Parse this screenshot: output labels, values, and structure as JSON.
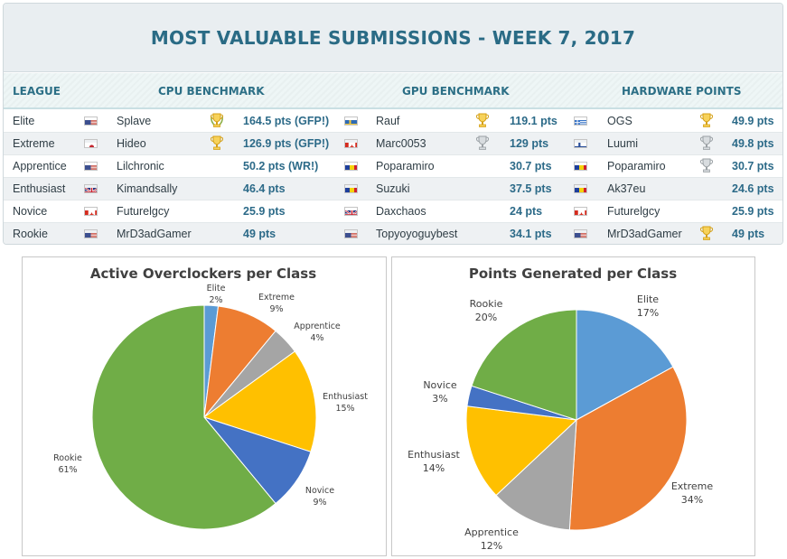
{
  "title": "MOST VALUABLE SUBMISSIONS - WEEK 7, 2017",
  "headers": {
    "league": "LEAGUE",
    "cpu": "CPU BENCHMARK",
    "gpu": "GPU BENCHMARK",
    "hw": "HARDWARE POINTS"
  },
  "rows": [
    {
      "league": "Elite",
      "cpu": {
        "flag": "us",
        "name": "Splave",
        "trophy": "gold-laurel",
        "pts": "164.5 pts (GFP!)"
      },
      "gpu": {
        "flag": "se",
        "name": "Rauf",
        "trophy": "gold",
        "pts": "119.1 pts"
      },
      "hw": {
        "flag": "gr",
        "name": "OGS",
        "trophy": "gold",
        "pts": "49.9 pts"
      }
    },
    {
      "league": "Extreme",
      "cpu": {
        "flag": "jp",
        "name": "Hideo",
        "trophy": "gold",
        "pts": "126.9 pts (GFP!)"
      },
      "gpu": {
        "flag": "ca",
        "name": "Marc0053",
        "trophy": "silver",
        "pts": "129 pts"
      },
      "hw": {
        "flag": "fi",
        "name": "Luumi",
        "trophy": "silver",
        "pts": "49.8 pts"
      }
    },
    {
      "league": "Apprentice",
      "cpu": {
        "flag": "us",
        "name": "Lilchronic",
        "trophy": "",
        "pts": "50.2 pts (WR!)"
      },
      "gpu": {
        "flag": "ro",
        "name": "Poparamiro",
        "trophy": "",
        "pts": "30.7 pts"
      },
      "hw": {
        "flag": "ro",
        "name": "Poparamiro",
        "trophy": "silver",
        "pts": "30.7 pts"
      }
    },
    {
      "league": "Enthusiast",
      "cpu": {
        "flag": "uk",
        "name": "Kimandsally",
        "trophy": "",
        "pts": "46.4 pts"
      },
      "gpu": {
        "flag": "ro",
        "name": "Suzuki",
        "trophy": "",
        "pts": "37.5 pts"
      },
      "hw": {
        "flag": "ro",
        "name": "Ak37eu",
        "trophy": "",
        "pts": "24.6 pts"
      }
    },
    {
      "league": "Novice",
      "cpu": {
        "flag": "ca",
        "name": "Futurelgcy",
        "trophy": "",
        "pts": "25.9 pts"
      },
      "gpu": {
        "flag": "uk",
        "name": "Daxchaos",
        "trophy": "",
        "pts": "24 pts"
      },
      "hw": {
        "flag": "ca",
        "name": "Futurelgcy",
        "trophy": "",
        "pts": "25.9 pts"
      }
    },
    {
      "league": "Rookie",
      "cpu": {
        "flag": "us",
        "name": "MrD3adGamer",
        "trophy": "",
        "pts": "49 pts"
      },
      "gpu": {
        "flag": "us",
        "name": "Topyoyoguybest",
        "trophy": "",
        "pts": "34.1 pts"
      },
      "hw": {
        "flag": "us",
        "name": "MrD3adGamer",
        "trophy": "gold",
        "pts": "49 pts"
      }
    }
  ],
  "colors": {
    "Elite": "#5b9bd5",
    "Extreme": "#ed7d31",
    "Apprentice": "#a5a5a5",
    "Enthusiast": "#ffc000",
    "Novice": "#4472c4",
    "Rookie": "#70ad47"
  },
  "chart_data": [
    {
      "type": "pie",
      "title": "Active Overclockers per Class",
      "categories": [
        "Elite",
        "Extreme",
        "Apprentice",
        "Enthusiast",
        "Novice",
        "Rookie"
      ],
      "values": [
        2,
        9,
        4,
        15,
        9,
        61
      ],
      "labels": [
        "2%",
        "9%",
        "4%",
        "15%",
        "9%",
        "61%"
      ]
    },
    {
      "type": "pie",
      "title": "Points Generated per Class",
      "categories": [
        "Elite",
        "Extreme",
        "Apprentice",
        "Enthusiast",
        "Novice",
        "Rookie"
      ],
      "values": [
        17,
        34,
        12,
        14,
        3,
        20
      ],
      "labels": [
        "17%",
        "34%",
        "12%",
        "14%",
        "3%",
        "20%"
      ]
    }
  ]
}
